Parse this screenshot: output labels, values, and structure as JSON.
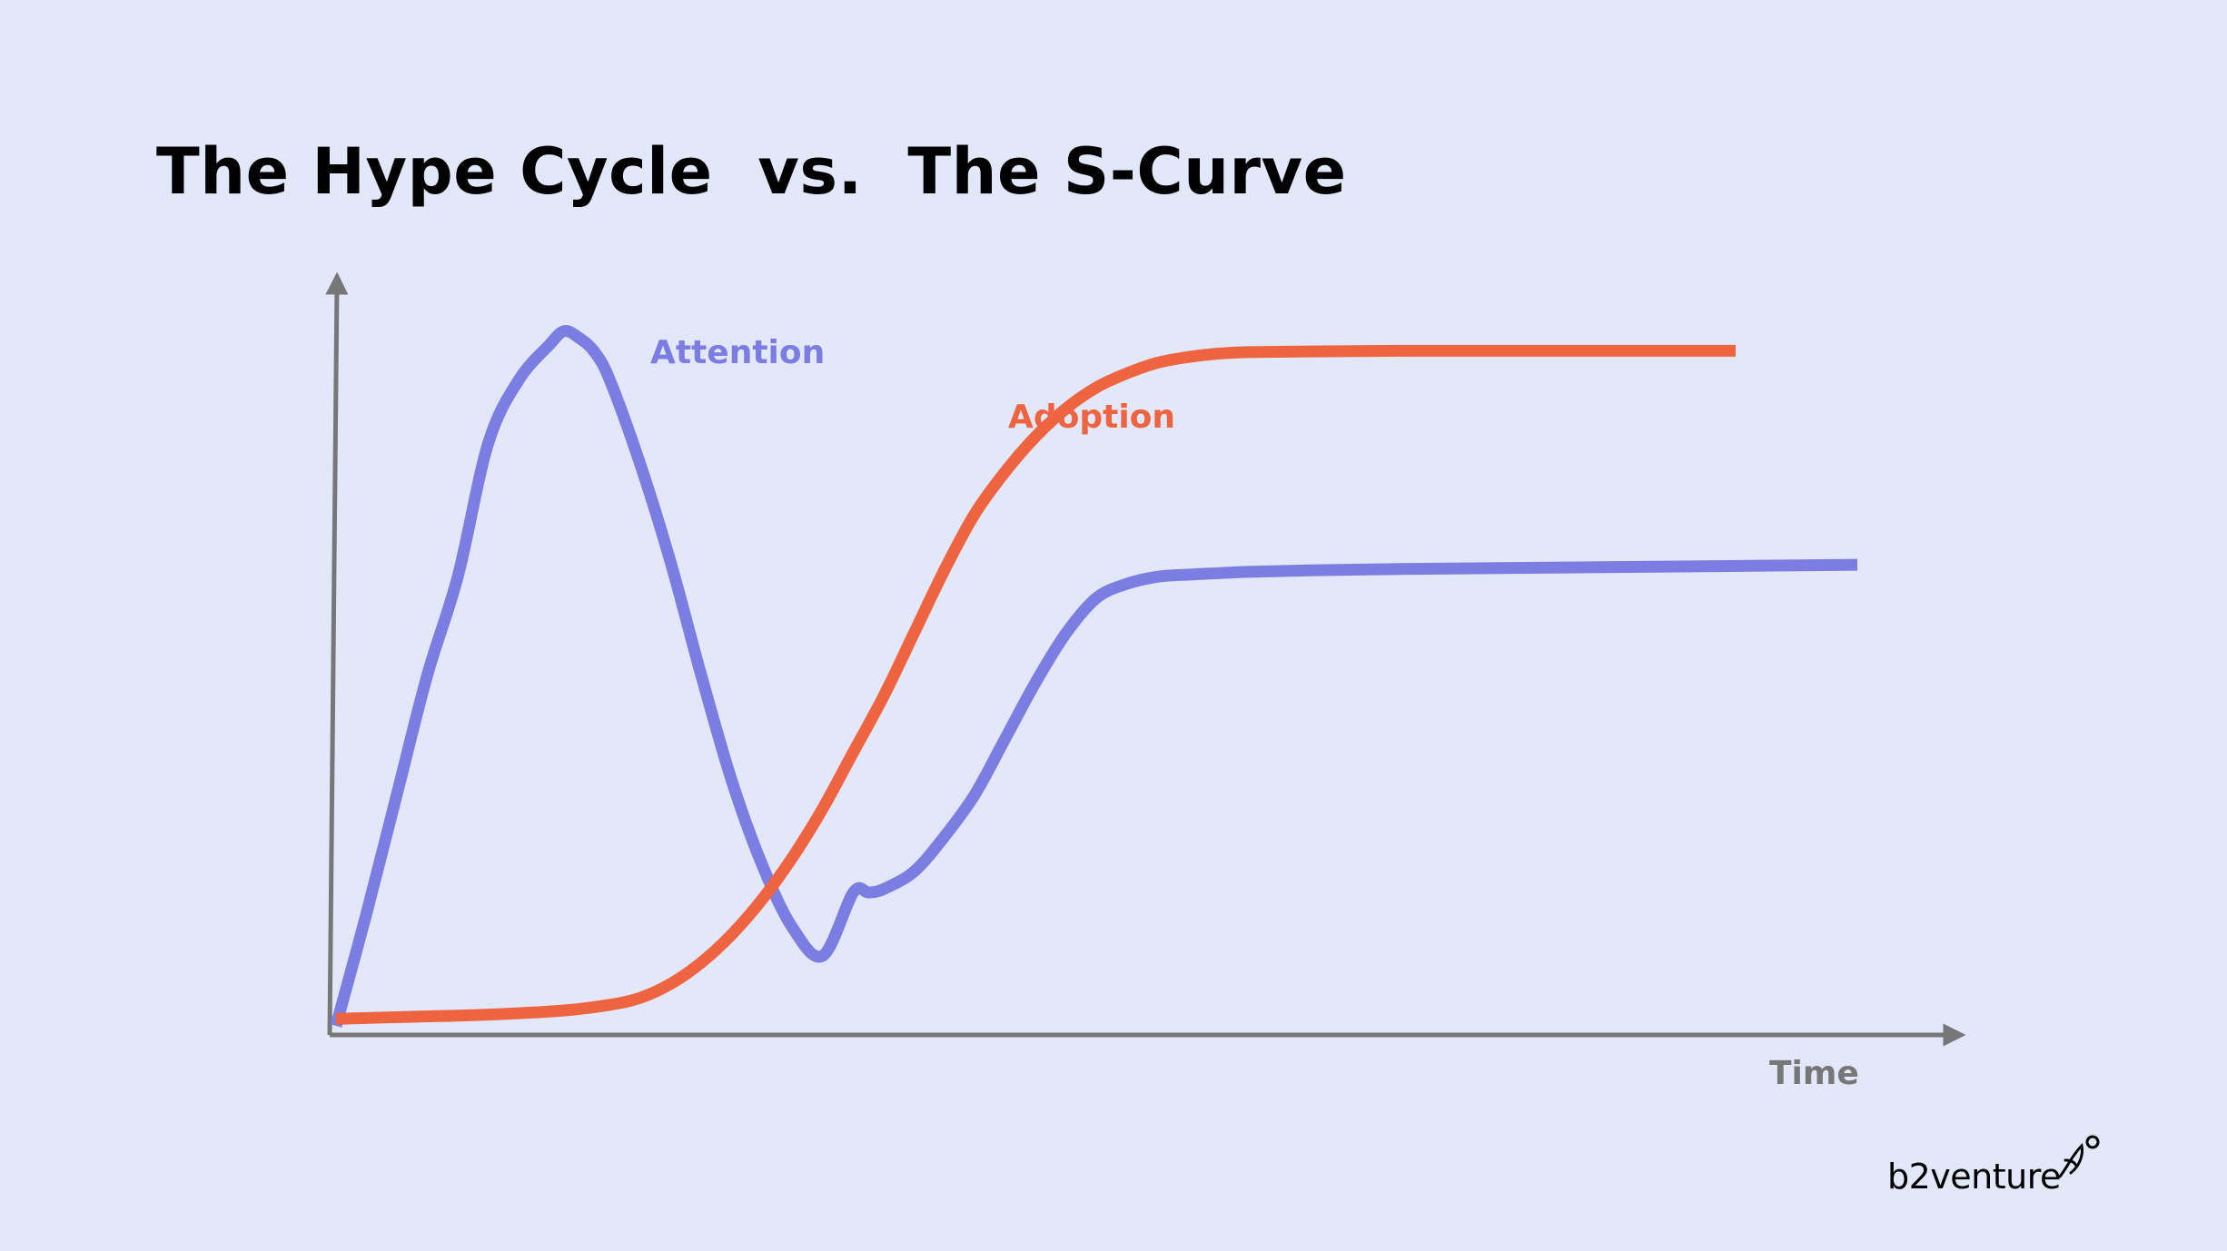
{
  "title": "The Hype Cycle  vs.  The S-Curve",
  "logo": {
    "text": "b2venture"
  },
  "colors": {
    "background": "#e2e7f9",
    "attention": "#7b7de2",
    "adoption": "#ee6440",
    "axis": "#777777",
    "title": "#000000"
  },
  "chart_data": {
    "type": "line",
    "title": "The Hype Cycle  vs.  The S-Curve",
    "xlabel": "Time",
    "ylabel": "",
    "xlim": [
      0,
      100
    ],
    "ylim": [
      0,
      100
    ],
    "grid": false,
    "legend": "inline labels",
    "series": [
      {
        "name": "Attention",
        "color": "#7b7de2",
        "x": [
          0,
          2,
          4,
          6,
          8,
          10,
          12,
          14,
          15,
          16,
          17,
          18,
          20,
          22,
          24,
          26,
          28,
          30,
          32,
          34,
          35,
          36,
          38,
          40,
          42,
          44,
          46,
          48,
          50,
          52,
          54,
          56,
          58,
          60,
          64,
          70,
          80,
          90,
          100
        ],
        "y": [
          0,
          16,
          33,
          50,
          64,
          83,
          92,
          97,
          99,
          98,
          96,
          92,
          80,
          66,
          50,
          35,
          23,
          14,
          10,
          19,
          19,
          19.5,
          22,
          27,
          33,
          41,
          49,
          56,
          61,
          63,
          64,
          64.3,
          64.5,
          64.7,
          64.9,
          65.1,
          65.3,
          65.5,
          65.7
        ]
      },
      {
        "name": "Adoption",
        "color": "#ee6440",
        "x": [
          0,
          5,
          10,
          15,
          18,
          20,
          22,
          24,
          26,
          28,
          30,
          32,
          34,
          36,
          38,
          40,
          42,
          44,
          46,
          48,
          50,
          52,
          54,
          56,
          58,
          60,
          64,
          70,
          80,
          92
        ],
        "y": [
          1,
          1.3,
          1.6,
          2.2,
          3,
          4,
          6,
          9,
          13,
          18,
          24,
          31,
          39,
          47,
          56,
          65,
          73,
          79,
          84,
          88,
          91,
          93,
          94.5,
          95.3,
          95.8,
          96,
          96.1,
          96.2,
          96.2,
          96.2
        ]
      }
    ],
    "annotations": [
      "Attention",
      "Adoption"
    ]
  }
}
